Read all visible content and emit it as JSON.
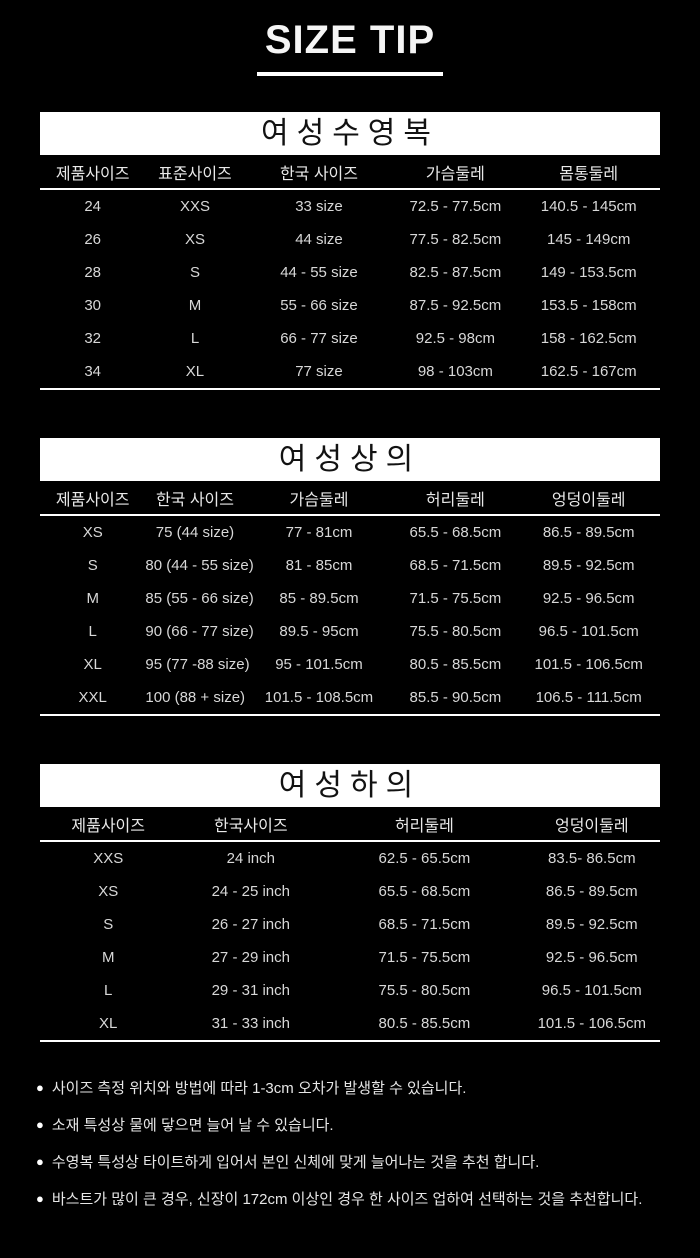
{
  "header": {
    "title": "SIZE TIP"
  },
  "colors": {
    "page_bg": "#000000",
    "banner_bg": "#ffffff",
    "banner_text": "#121212",
    "table_text": "#d8d8d8",
    "line": "#ffffff"
  },
  "tables": [
    {
      "title": "여성수영복",
      "headers": [
        "제품사이즈",
        "표준사이즈",
        "한국 사이즈",
        "가슴둘레",
        "몸통둘레"
      ],
      "rows": [
        [
          "24",
          "XXS",
          "33 size",
          "72.5 - 77.5cm",
          "140.5 - 145cm"
        ],
        [
          "26",
          "XS",
          "44 size",
          "77.5 - 82.5cm",
          "145 - 149cm"
        ],
        [
          "28",
          "S",
          "44 - 55 size",
          "82.5 - 87.5cm",
          "149 - 153.5cm"
        ],
        [
          "30",
          "M",
          "55 - 66 size",
          "87.5 - 92.5cm",
          "153.5 - 158cm"
        ],
        [
          "32",
          "L",
          "66 - 77 size",
          "92.5 - 98cm",
          "158 - 162.5cm"
        ],
        [
          "34",
          "XL",
          "77 size",
          "98 - 103cm",
          "162.5 - 167cm"
        ]
      ]
    },
    {
      "title": "여성상의",
      "headers": [
        "제품사이즈",
        "한국 사이즈",
        "가슴둘레",
        "허리둘레",
        "엉덩이둘레"
      ],
      "rows": [
        [
          "XS",
          "75 (44 size)",
          "77 - 81cm",
          "65.5 - 68.5cm",
          "86.5 - 89.5cm"
        ],
        [
          "S",
          "80 (44 - 55 size)",
          "81 - 85cm",
          "68.5 - 71.5cm",
          "89.5 - 92.5cm"
        ],
        [
          "M",
          "85 (55 - 66 size)",
          "85 - 89.5cm",
          "71.5 - 75.5cm",
          "92.5 - 96.5cm"
        ],
        [
          "L",
          "90 (66 - 77 size)",
          "89.5 - 95cm",
          "75.5 - 80.5cm",
          "96.5 - 101.5cm"
        ],
        [
          "XL",
          "95 (77 -88 size)",
          "95 - 101.5cm",
          "80.5 - 85.5cm",
          "101.5 - 106.5cm"
        ],
        [
          "XXL",
          "100 (88 + size)",
          "101.5 - 108.5cm",
          "85.5 - 90.5cm",
          "106.5 - 111.5cm"
        ]
      ]
    },
    {
      "title": "여성하의",
      "headers": [
        "제품사이즈",
        "한국사이즈",
        "허리둘레",
        "엉덩이둘레"
      ],
      "rows": [
        [
          "XXS",
          "24 inch",
          "62.5 - 65.5cm",
          "83.5- 86.5cm"
        ],
        [
          "XS",
          "24 - 25 inch",
          "65.5 - 68.5cm",
          "86.5 - 89.5cm"
        ],
        [
          "S",
          "26 - 27 inch",
          "68.5 - 71.5cm",
          "89.5 - 92.5cm"
        ],
        [
          "M",
          "27 - 29 inch",
          "71.5 - 75.5cm",
          "92.5 - 96.5cm"
        ],
        [
          "L",
          "29 - 31 inch",
          "75.5 - 80.5cm",
          "96.5 - 101.5cm"
        ],
        [
          "XL",
          "31 - 33 inch",
          "80.5 - 85.5cm",
          "101.5 - 106.5cm"
        ]
      ]
    }
  ],
  "notes": {
    "bullet_glyph": "●",
    "items": [
      "사이즈 측정 위치와 방법에 따라 1-3cm 오차가 발생할 수 있습니다.",
      "소재 특성상 물에 닿으면 늘어 날 수 있습니다.",
      "수영복 특성상 타이트하게 입어서 본인 신체에 맞게 늘어나는 것을 추천 합니다.",
      "바스트가 많이 큰 경우, 신장이 172cm 이상인 경우 한 사이즈 업하여 선택하는 것을 추천합니다."
    ]
  }
}
